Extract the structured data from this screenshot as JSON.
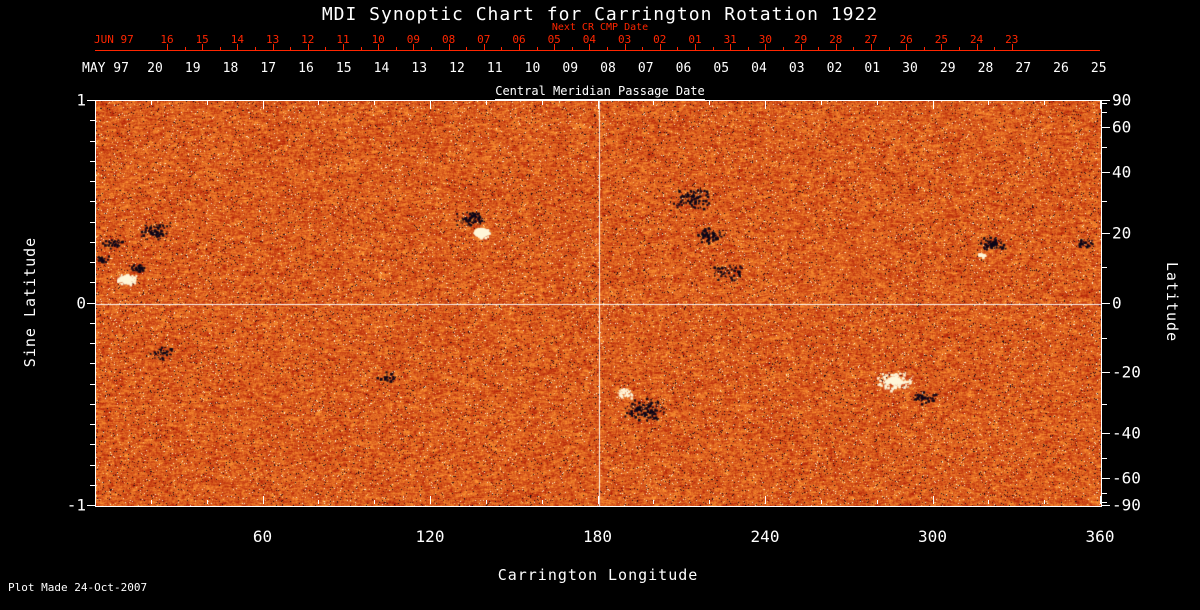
{
  "title": "MDI Synoptic Chart for Carrington Rotation 1922",
  "footer": "Plot Made 24-Oct-2007",
  "top_axis_red": {
    "month_label": "JUN 97",
    "axis_title": "Next CR CMP Date",
    "ticks": [
      "16",
      "15",
      "14",
      "13",
      "12",
      "11",
      "10",
      "09",
      "08",
      "07",
      "06",
      "05",
      "04",
      "03",
      "02",
      "01",
      "31",
      "30",
      "29",
      "28",
      "27",
      "26",
      "25",
      "24",
      "23"
    ]
  },
  "top_axis_white": {
    "month_label": "MAY 97",
    "axis_title": "Central Meridian Passage Date",
    "ticks": [
      "20",
      "19",
      "18",
      "17",
      "16",
      "15",
      "14",
      "13",
      "12",
      "11",
      "10",
      "09",
      "08",
      "07",
      "06",
      "05",
      "04",
      "03",
      "02",
      "01",
      "30",
      "29",
      "28",
      "27",
      "26",
      "25"
    ]
  },
  "chart_data": {
    "type": "heatmap",
    "title": "MDI Synoptic Chart for Carrington Rotation 1922",
    "subtitle_top_red": "Next CR CMP Date",
    "subtitle_top_white": "Central Meridian Passage Date",
    "xlabel": "Carrington Longitude",
    "ylabel_left": "Sine Latitude",
    "ylabel_right": "Latitude",
    "xlim": [
      0,
      360
    ],
    "ylim_sine": [
      -1,
      1
    ],
    "x_ticks": [
      60,
      120,
      180,
      240,
      300,
      360
    ],
    "x_minor_step": 20,
    "left_ticks": [
      1,
      0,
      -1
    ],
    "right_ticks": [
      90,
      60,
      40,
      20,
      0,
      -20,
      -40,
      -60,
      -90
    ],
    "right_minor_ticks": [
      80,
      70,
      50,
      30,
      10,
      -10,
      -30,
      -50,
      -70,
      -80
    ],
    "crosshair": {
      "longitude": 180,
      "sine_latitude": 0
    },
    "colors": {
      "background": "#000000",
      "axis": "#ffffff",
      "red_axis": "#ff2600",
      "base_orange": "#e8581c",
      "negative_field": "#0d0618",
      "positive_field": "#fff6d8",
      "crosshair": "#ffffff"
    },
    "description": "Full-disk solar magnetogram synoptic map; orange mottled quiet-sun field with dark (negative) and bright (positive) active regions",
    "active_regions": [
      {
        "longitude": 11,
        "sine_latitude": 0.12,
        "polarity": "positive",
        "spread": 6,
        "dots": 110,
        "core": 4
      },
      {
        "longitude": 15,
        "sine_latitude": 0.18,
        "polarity": "negative",
        "spread": 5,
        "dots": 45,
        "core": 0
      },
      {
        "longitude": 2,
        "sine_latitude": 0.22,
        "polarity": "negative",
        "spread": 4,
        "dots": 25,
        "core": 0
      },
      {
        "longitude": 6,
        "sine_latitude": 0.3,
        "polarity": "negative",
        "spread": 6,
        "dots": 40,
        "core": 0
      },
      {
        "longitude": 21,
        "sine_latitude": 0.36,
        "polarity": "negative",
        "spread": 9,
        "dots": 80,
        "core": 0
      },
      {
        "longitude": 24,
        "sine_latitude": -0.24,
        "polarity": "negative",
        "spread": 8,
        "dots": 45,
        "core": 0
      },
      {
        "longitude": 104,
        "sine_latitude": -0.36,
        "polarity": "negative",
        "spread": 6,
        "dots": 30,
        "core": 0
      },
      {
        "longitude": 138,
        "sine_latitude": 0.35,
        "polarity": "positive",
        "spread": 5,
        "dots": 80,
        "core": 5
      },
      {
        "longitude": 134,
        "sine_latitude": 0.42,
        "polarity": "negative",
        "spread": 8,
        "dots": 90,
        "core": 0
      },
      {
        "longitude": 213,
        "sine_latitude": 0.52,
        "polarity": "negative",
        "spread": 11,
        "dots": 110,
        "core": 0
      },
      {
        "longitude": 220,
        "sine_latitude": 0.34,
        "polarity": "negative",
        "spread": 8,
        "dots": 70,
        "core": 0
      },
      {
        "longitude": 226,
        "sine_latitude": 0.16,
        "polarity": "negative",
        "spread": 9,
        "dots": 45,
        "core": 0
      },
      {
        "longitude": 196,
        "sine_latitude": -0.52,
        "polarity": "negative",
        "spread": 12,
        "dots": 120,
        "core": 0
      },
      {
        "longitude": 189,
        "sine_latitude": -0.44,
        "polarity": "positive",
        "spread": 5,
        "dots": 35,
        "core": 0
      },
      {
        "longitude": 286,
        "sine_latitude": -0.38,
        "polarity": "positive",
        "spread": 10,
        "dots": 150,
        "core": 4
      },
      {
        "longitude": 296,
        "sine_latitude": -0.46,
        "polarity": "negative",
        "spread": 7,
        "dots": 55,
        "core": 0
      },
      {
        "longitude": 321,
        "sine_latitude": 0.3,
        "polarity": "negative",
        "spread": 7,
        "dots": 75,
        "core": 0
      },
      {
        "longitude": 317,
        "sine_latitude": 0.24,
        "polarity": "positive",
        "spread": 3,
        "dots": 18,
        "core": 2
      },
      {
        "longitude": 354,
        "sine_latitude": 0.3,
        "polarity": "negative",
        "spread": 5,
        "dots": 35,
        "core": 0
      }
    ]
  }
}
